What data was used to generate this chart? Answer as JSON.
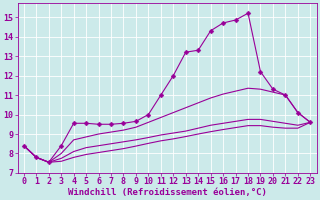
{
  "background_color": "#cceaea",
  "line_color": "#990099",
  "xlabel": "Windchill (Refroidissement éolien,°C)",
  "xlim": [
    -0.5,
    23.5
  ],
  "ylim": [
    7.0,
    15.7
  ],
  "yticks": [
    7,
    8,
    9,
    10,
    11,
    12,
    13,
    14,
    15
  ],
  "xticks": [
    0,
    1,
    2,
    3,
    4,
    5,
    6,
    7,
    8,
    9,
    10,
    11,
    12,
    13,
    14,
    15,
    16,
    17,
    18,
    19,
    20,
    21,
    22,
    23
  ],
  "grid_color": "#ffffff",
  "curve1_x": [
    0,
    1,
    2,
    3,
    4,
    5,
    6,
    7,
    8,
    9,
    10,
    11,
    12,
    13,
    14,
    15,
    16,
    17,
    18,
    19,
    20,
    21,
    22,
    23
  ],
  "curve1_y": [
    8.4,
    7.8,
    7.55,
    8.4,
    9.55,
    9.55,
    9.5,
    9.5,
    9.55,
    9.65,
    10.0,
    11.0,
    12.0,
    13.2,
    13.3,
    14.3,
    14.7,
    14.85,
    15.2,
    12.2,
    11.3,
    11.0,
    10.1,
    9.6
  ],
  "curve2_x": [
    0,
    1,
    2,
    3,
    4,
    5,
    6,
    7,
    8,
    9,
    10,
    11,
    12,
    13,
    14,
    15,
    16,
    17,
    18,
    19,
    20,
    21,
    22,
    23
  ],
  "curve2_y": [
    8.4,
    7.8,
    7.55,
    8.0,
    8.7,
    8.85,
    9.0,
    9.1,
    9.2,
    9.35,
    9.6,
    9.85,
    10.1,
    10.35,
    10.6,
    10.85,
    11.05,
    11.2,
    11.35,
    11.3,
    11.15,
    11.0,
    10.1,
    9.6
  ],
  "curve3_x": [
    0,
    1,
    2,
    3,
    4,
    5,
    6,
    7,
    8,
    9,
    10,
    11,
    12,
    13,
    14,
    15,
    16,
    17,
    18,
    19,
    20,
    21,
    22,
    23
  ],
  "curve3_y": [
    8.4,
    7.8,
    7.55,
    7.75,
    8.1,
    8.3,
    8.4,
    8.5,
    8.6,
    8.7,
    8.82,
    8.95,
    9.05,
    9.15,
    9.3,
    9.45,
    9.55,
    9.65,
    9.75,
    9.75,
    9.65,
    9.55,
    9.45,
    9.6
  ],
  "curve4_x": [
    0,
    1,
    2,
    3,
    4,
    5,
    6,
    7,
    8,
    9,
    10,
    11,
    12,
    13,
    14,
    15,
    16,
    17,
    18,
    19,
    20,
    21,
    22,
    23
  ],
  "curve4_y": [
    8.4,
    7.8,
    7.55,
    7.6,
    7.8,
    7.95,
    8.05,
    8.15,
    8.25,
    8.38,
    8.52,
    8.65,
    8.75,
    8.87,
    9.0,
    9.12,
    9.23,
    9.33,
    9.43,
    9.43,
    9.35,
    9.3,
    9.3,
    9.6
  ],
  "xlabel_fontsize": 6.5,
  "tick_fontsize": 6,
  "marker_size": 2.5,
  "linewidth": 0.8
}
